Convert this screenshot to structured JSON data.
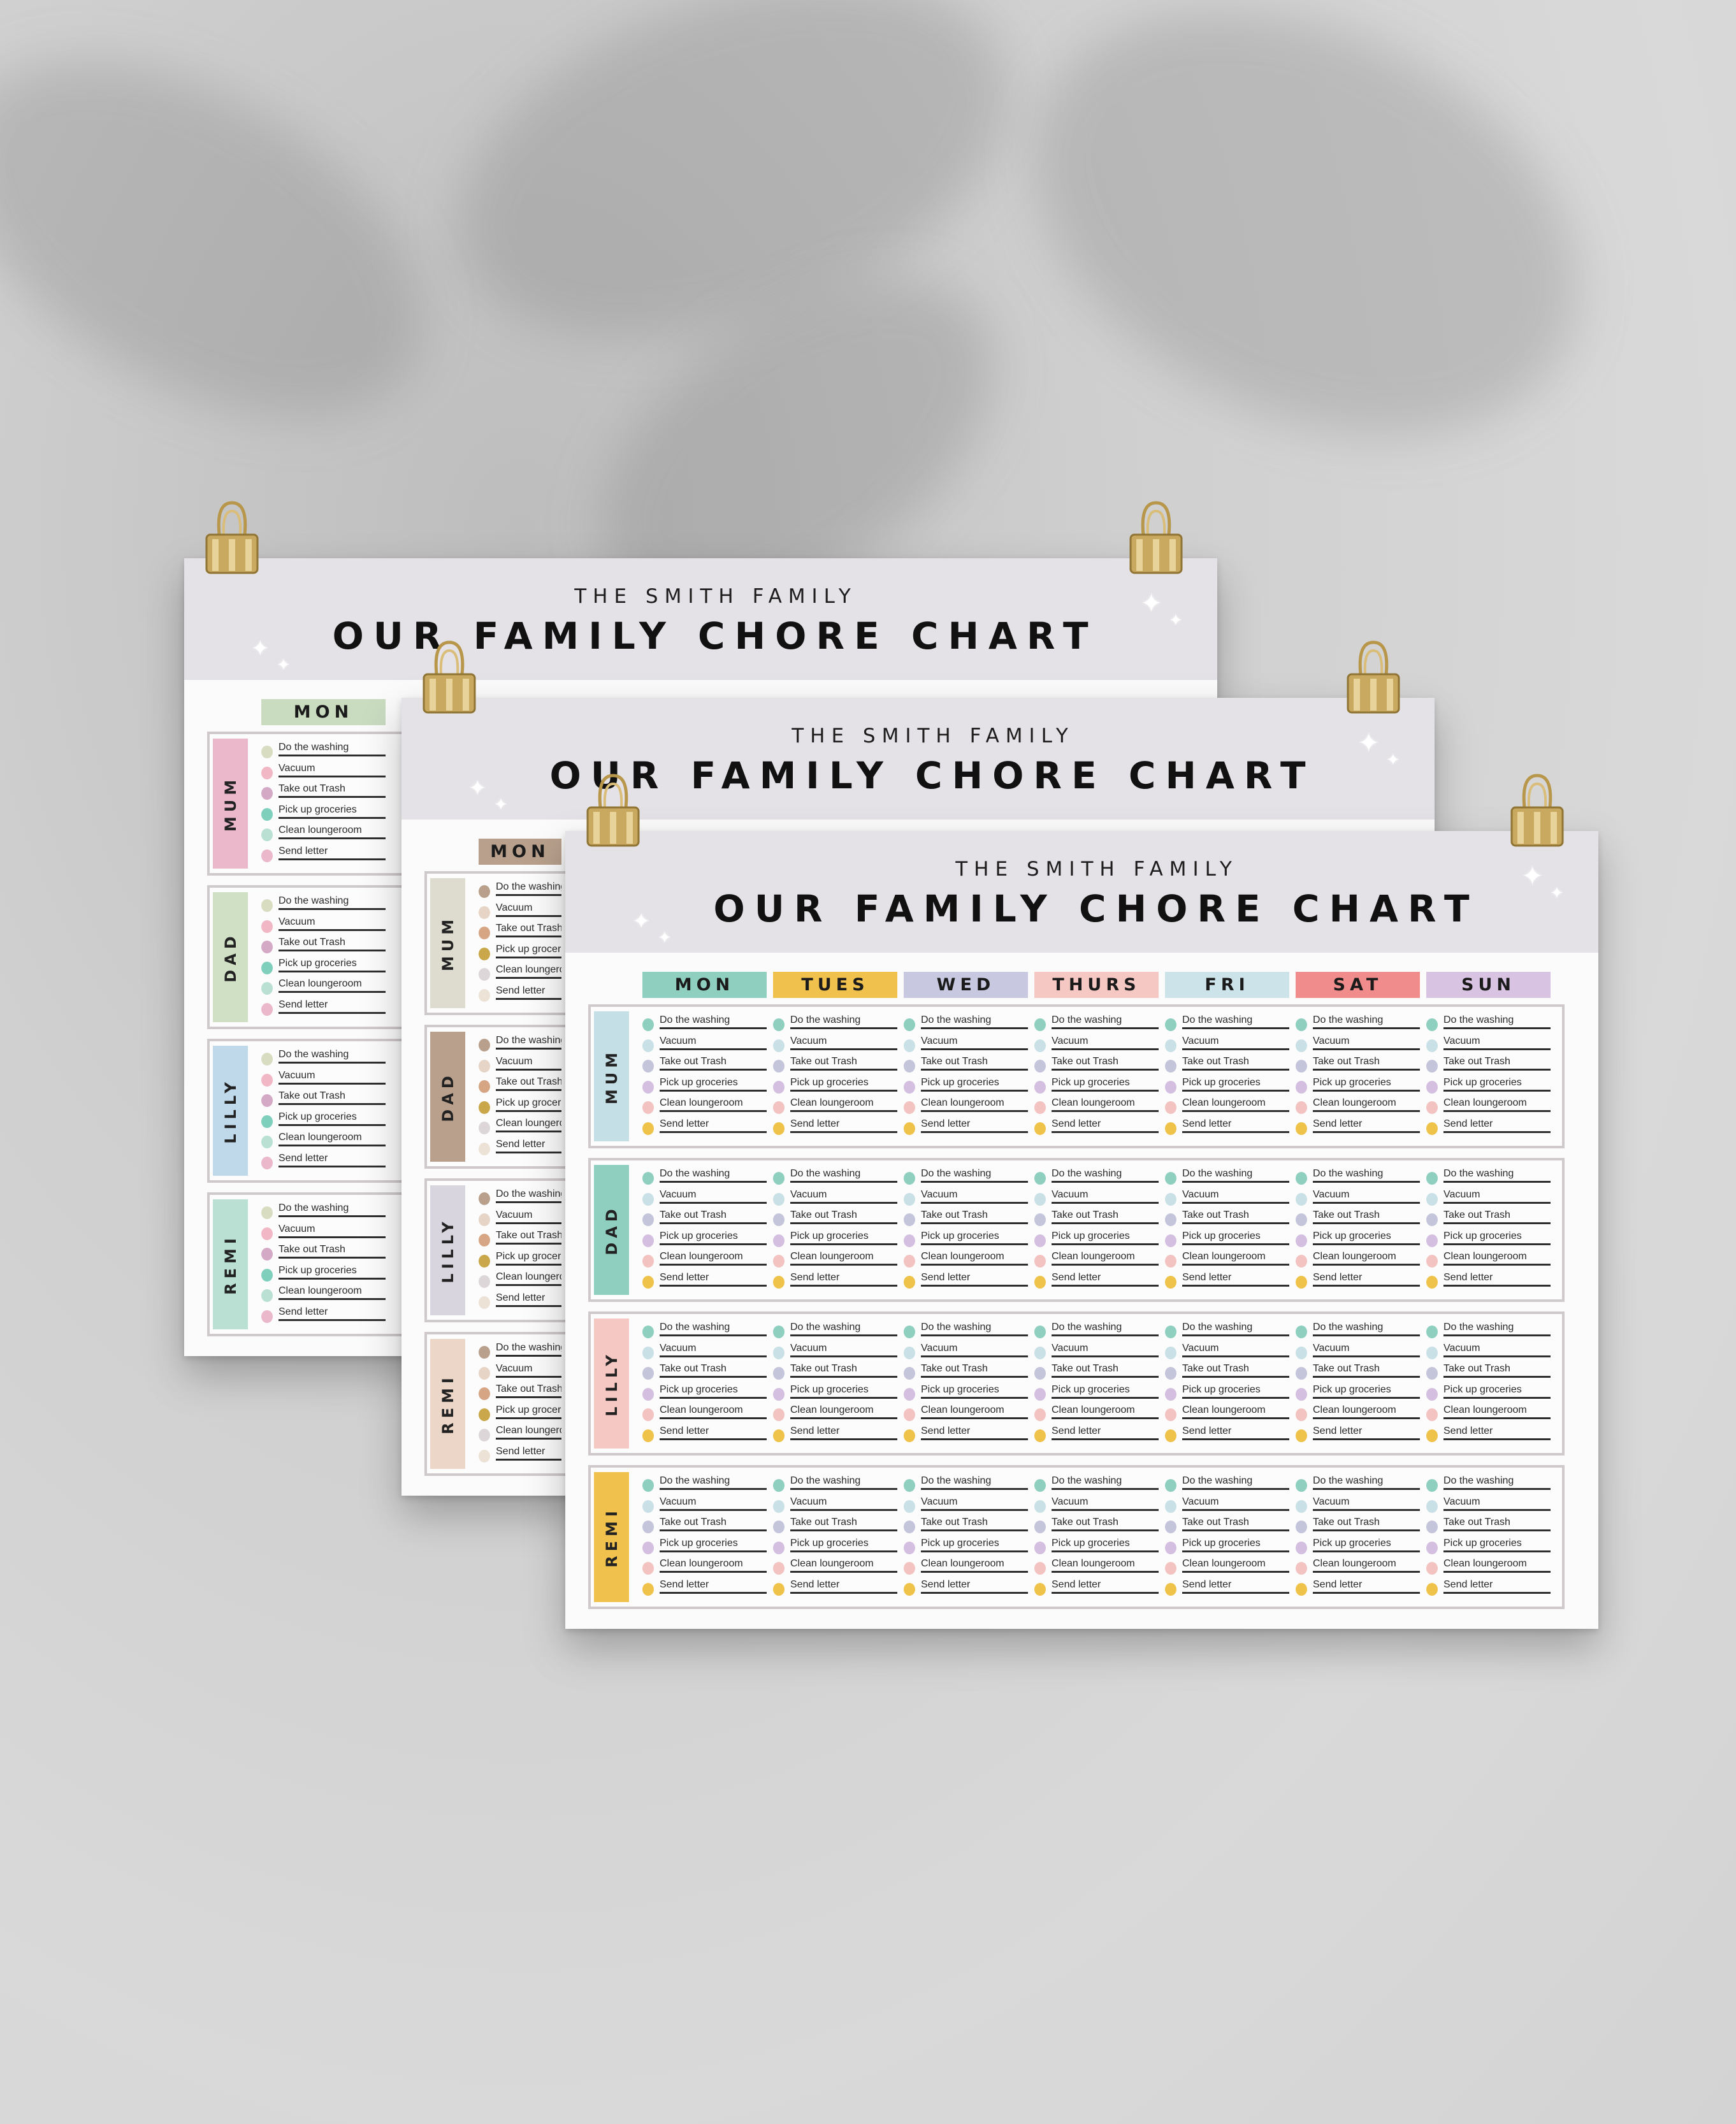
{
  "family_name": "THE SMITH FAMILY",
  "title": "OUR FAMILY CHORE CHART",
  "chores": [
    {
      "label": "Do the washing",
      "dot_color": "#8fcfbf"
    },
    {
      "label": "Vacuum",
      "dot_color": "#c9e1e6"
    },
    {
      "label": "Take out Trash",
      "dot_color": "#c4c4db"
    },
    {
      "label": "Pick up groceries",
      "dot_color": "#d4bfe0"
    },
    {
      "label": "Clean loungeroom",
      "dot_color": "#f2c3c1"
    },
    {
      "label": "Send letter",
      "dot_color": "#efc24a"
    }
  ],
  "days": [
    "MON",
    "TUES",
    "WED",
    "THURS",
    "FRI",
    "SAT",
    "SUN"
  ],
  "members": [
    "MUM",
    "DAD",
    "LILLY",
    "REMI"
  ],
  "charts": [
    {
      "name": "back-chart",
      "day_colors": [
        "#c9dcc0",
        "#d9e9e4",
        "#e6d2dc",
        "#d3dcc3",
        "#cde3ea",
        "#e9d5c6",
        "#dccbe2"
      ],
      "member_colors": [
        "#eab7cb",
        "#cfe0c4",
        "#bfd9ea",
        "#b9e0d2"
      ],
      "dot_colors": [
        "#d8dcc0",
        "#f2b7c5",
        "#d3a9c6",
        "#7fcfbd",
        "#b9e0d2",
        "#eab7cb"
      ]
    },
    {
      "name": "middle-chart",
      "day_colors": [
        "#b8a08c",
        "#d8c6b5",
        "#d8d5de",
        "#ecd6c8",
        "#cde3ea",
        "#e9c9bd",
        "#dccbe2"
      ],
      "member_colors": [
        "#dedcce",
        "#b8a08c",
        "#d8d5de",
        "#ecd6c8"
      ],
      "dot_colors": [
        "#b8a08c",
        "#e6d5c6",
        "#d6a583",
        "#c9a74a",
        "#ddd6d8",
        "#ece3d6"
      ]
    },
    {
      "name": "front-chart",
      "day_colors": [
        "#8fcfc0",
        "#f0c24d",
        "#c8c8e0",
        "#f5c8c4",
        "#cde3ea",
        "#f08c8c",
        "#d8c3e3"
      ],
      "member_colors": [
        "#c5dfe6",
        "#8fcfc0",
        "#f5c8c4",
        "#f0c24d"
      ],
      "dot_colors": [
        "#8fcfbf",
        "#c9e1e6",
        "#c4c4db",
        "#d4bfe0",
        "#f2c3c1",
        "#efc24a"
      ]
    }
  ],
  "icons": {
    "clip": "binder-clip-icon",
    "sparkle": "sparkle-icon"
  }
}
